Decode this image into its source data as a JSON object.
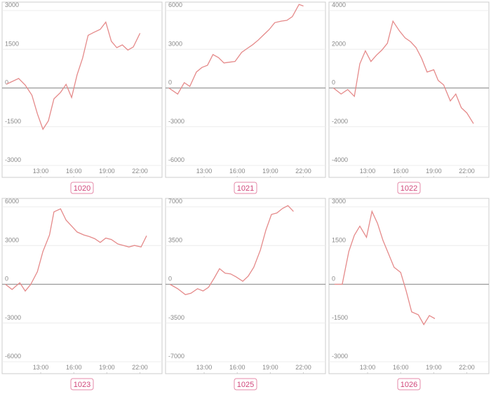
{
  "chart_data": [
    {
      "type": "line",
      "title": "1020",
      "color": "#e58a8a",
      "x": [
        9.9,
        11.0,
        11.6,
        12.2,
        12.7,
        13.2,
        13.7,
        14.2,
        14.8,
        15.3,
        15.8,
        16.3,
        16.8,
        17.3,
        17.8,
        18.4,
        18.9,
        19.4,
        19.9,
        20.4,
        20.9,
        21.4,
        22.0
      ],
      "values": [
        150,
        370,
        110,
        -280,
        -1000,
        -1600,
        -1270,
        -420,
        -170,
        140,
        -370,
        510,
        1160,
        2040,
        2150,
        2270,
        2550,
        1810,
        1560,
        1670,
        1470,
        1590,
        2120
      ],
      "xlim": [
        9.5,
        24
      ],
      "xticks": [
        {
          "value": 13,
          "label": "13:00"
        },
        {
          "value": 16,
          "label": "16:00"
        },
        {
          "value": 19,
          "label": "19:00"
        },
        {
          "value": 22,
          "label": "22:00"
        }
      ],
      "ylim": [
        -3000,
        3000
      ],
      "yticks": [
        3000,
        1500,
        0,
        -1500,
        -3000
      ],
      "grid": true
    },
    {
      "type": "line",
      "title": "1021",
      "color": "#e58a8a",
      "x": [
        9.8,
        10.6,
        11.2,
        11.7,
        12.3,
        12.8,
        13.3,
        13.8,
        14.3,
        14.8,
        15.3,
        15.8,
        16.4,
        16.9,
        17.4,
        17.9,
        18.4,
        18.9,
        19.4,
        20.0,
        20.5,
        21.0,
        21.6,
        22.0
      ],
      "values": [
        0,
        -470,
        410,
        120,
        1240,
        1590,
        1760,
        2590,
        2350,
        1940,
        2000,
        2060,
        2760,
        3060,
        3350,
        3710,
        4120,
        4530,
        5060,
        5180,
        5240,
        5530,
        6470,
        6350
      ],
      "xlim": [
        9.5,
        24
      ],
      "xticks": [
        {
          "value": 13,
          "label": "13:00"
        },
        {
          "value": 16,
          "label": "16:00"
        },
        {
          "value": 19,
          "label": "19:00"
        },
        {
          "value": 22,
          "label": "22:00"
        }
      ],
      "ylim": [
        -6000,
        6000
      ],
      "yticks": [
        6000,
        3000,
        0,
        -3000,
        -6000
      ],
      "grid": true
    },
    {
      "type": "line",
      "title": "1022",
      "color": "#e58a8a",
      "x": [
        9.9,
        10.6,
        11.2,
        11.8,
        12.3,
        12.8,
        13.3,
        13.8,
        14.3,
        14.8,
        15.3,
        15.9,
        16.4,
        16.9,
        17.4,
        17.9,
        18.4,
        19.0,
        19.4,
        19.9,
        20.5,
        21.0,
        21.5,
        22.0,
        22.6
      ],
      "values": [
        0,
        -310,
        -80,
        -430,
        1250,
        1920,
        1370,
        1690,
        1960,
        2310,
        3450,
        2940,
        2590,
        2390,
        2080,
        1530,
        820,
        940,
        390,
        160,
        -670,
        -310,
        -1020,
        -1290,
        -1840
      ],
      "xlim": [
        9.5,
        24
      ],
      "xticks": [
        {
          "value": 13,
          "label": "13:00"
        },
        {
          "value": 16,
          "label": "16:00"
        },
        {
          "value": 19,
          "label": "19:00"
        },
        {
          "value": 22,
          "label": "22:00"
        }
      ],
      "ylim": [
        -4000,
        4000
      ],
      "yticks": [
        4000,
        2000,
        0,
        -2000,
        -4000
      ],
      "grid": true
    },
    {
      "type": "line",
      "title": "1023",
      "color": "#e58a8a",
      "x": [
        9.8,
        10.4,
        11.1,
        11.6,
        12.1,
        12.7,
        13.2,
        13.8,
        14.2,
        14.8,
        15.3,
        15.8,
        16.3,
        16.9,
        17.4,
        17.9,
        18.4,
        18.9,
        19.4,
        20.0,
        20.5,
        21.0,
        21.5,
        22.1,
        22.6
      ],
      "values": [
        0,
        -400,
        120,
        -520,
        0,
        980,
        2540,
        3820,
        5610,
        5840,
        4970,
        4510,
        4050,
        3820,
        3700,
        3530,
        3240,
        3580,
        3470,
        3120,
        3010,
        2890,
        3010,
        2890,
        3760
      ],
      "xlim": [
        9.5,
        24
      ],
      "xticks": [
        {
          "value": 13,
          "label": "13:00"
        },
        {
          "value": 16,
          "label": "16:00"
        },
        {
          "value": 19,
          "label": "19:00"
        },
        {
          "value": 22,
          "label": "22:00"
        }
      ],
      "ylim": [
        -6000,
        6000
      ],
      "yticks": [
        6000,
        3000,
        0,
        -3000,
        -6000
      ],
      "grid": true
    },
    {
      "type": "line",
      "title": "1025",
      "color": "#e58a8a",
      "x": [
        9.9,
        10.6,
        11.3,
        11.8,
        12.4,
        12.9,
        13.4,
        13.9,
        14.4,
        14.9,
        15.4,
        15.9,
        16.5,
        17.0,
        17.5,
        18.1,
        18.6,
        19.1,
        19.6,
        20.1,
        20.6,
        21.1
      ],
      "values": [
        0,
        -400,
        -940,
        -810,
        -400,
        -600,
        -270,
        540,
        1410,
        1010,
        940,
        670,
        270,
        740,
        1540,
        3090,
        4900,
        6310,
        6440,
        6850,
        7110,
        6580
      ],
      "xlim": [
        9.5,
        24
      ],
      "xticks": [
        {
          "value": 13,
          "label": "13:00"
        },
        {
          "value": 16,
          "label": "16:00"
        },
        {
          "value": 19,
          "label": "19:00"
        },
        {
          "value": 22,
          "label": "22:00"
        }
      ],
      "ylim": [
        -7000,
        7000
      ],
      "yticks": [
        7000,
        3500,
        0,
        -3500,
        -7000
      ],
      "grid": true
    },
    {
      "type": "line",
      "title": "1026",
      "color": "#e58a8a",
      "x": [
        10.0,
        10.7,
        11.3,
        11.8,
        12.3,
        12.9,
        13.4,
        13.9,
        14.4,
        14.9,
        15.4,
        16.0,
        16.5,
        17.0,
        17.6,
        18.1,
        18.6,
        19.1
      ],
      "values": [
        0,
        0,
        1270,
        1900,
        2250,
        1820,
        2820,
        2360,
        1700,
        1180,
        660,
        460,
        -260,
        -1070,
        -1180,
        -1560,
        -1210,
        -1330
      ],
      "xlim": [
        9.5,
        24
      ],
      "xticks": [
        {
          "value": 13,
          "label": "13:00"
        },
        {
          "value": 16,
          "label": "16:00"
        },
        {
          "value": 19,
          "label": "19:00"
        },
        {
          "value": 22,
          "label": "22:00"
        }
      ],
      "ylim": [
        -3000,
        3000
      ],
      "yticks": [
        3000,
        1500,
        0,
        -1500,
        -3000
      ],
      "grid": true
    }
  ]
}
